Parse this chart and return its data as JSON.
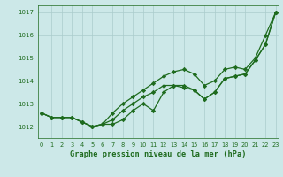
{
  "title": "Graphe pression niveau de la mer (hPa)",
  "x": [
    0,
    1,
    2,
    3,
    4,
    5,
    6,
    7,
    8,
    9,
    10,
    11,
    12,
    13,
    14,
    15,
    16,
    17,
    18,
    19,
    20,
    21,
    22,
    23
  ],
  "series1": [
    1012.6,
    1012.4,
    1012.4,
    1012.4,
    1012.2,
    1012.0,
    1012.1,
    1012.3,
    1012.7,
    1013.0,
    1013.3,
    1013.5,
    1013.8,
    1013.8,
    1013.7,
    1013.6,
    1013.2,
    1013.5,
    1014.1,
    1014.2,
    1014.3,
    1014.9,
    1015.6,
    1017.0
  ],
  "series2": [
    1012.6,
    1012.4,
    1012.4,
    1012.4,
    1012.2,
    1012.0,
    1012.1,
    1012.1,
    1012.3,
    1012.7,
    1013.0,
    1012.7,
    1013.5,
    1013.8,
    1013.8,
    1013.6,
    1013.2,
    1013.5,
    1014.1,
    1014.2,
    1014.3,
    1014.9,
    1015.6,
    1017.0
  ],
  "series3": [
    1012.6,
    1012.4,
    1012.4,
    1012.4,
    1012.2,
    1012.0,
    1012.1,
    1012.6,
    1013.0,
    1013.3,
    1013.6,
    1013.9,
    1014.2,
    1014.4,
    1014.5,
    1014.3,
    1013.8,
    1014.0,
    1014.5,
    1014.6,
    1014.5,
    1015.0,
    1016.0,
    1017.0
  ],
  "ylim": [
    1011.5,
    1017.3
  ],
  "yticks": [
    1012,
    1013,
    1014,
    1015,
    1016,
    1017
  ],
  "xlim": [
    -0.3,
    23.3
  ],
  "line_color": "#1e6b1e",
  "bg_color": "#cce8e8",
  "grid_color": "#aacccc",
  "marker": "D",
  "markersize": 2.2,
  "linewidth": 0.9
}
